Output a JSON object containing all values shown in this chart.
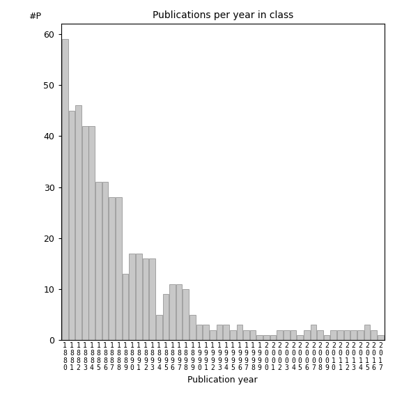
{
  "title": "Publications per year in class",
  "xlabel": "Publication year",
  "ylabel": "#P",
  "bar_color": "#c8c8c8",
  "edge_color": "#888888",
  "background_color": "#ffffff",
  "ylim": [
    0,
    62
  ],
  "yticks": [
    0,
    10,
    20,
    30,
    40,
    50,
    60
  ],
  "years": [
    1880,
    1881,
    1882,
    1883,
    1884,
    1885,
    1886,
    1887,
    1888,
    1889,
    1890,
    1891,
    1892,
    1893,
    1894,
    1895,
    1896,
    1897,
    1898,
    1899,
    1990,
    1991,
    1992,
    1993,
    1994,
    1995,
    1996,
    1997,
    1998,
    1999,
    2000,
    2001,
    2002,
    2003,
    2004,
    2005,
    2006,
    2007,
    2008,
    2009,
    2010,
    2011,
    2012,
    2013,
    2014,
    2015,
    2016,
    2017
  ],
  "values": [
    59,
    45,
    46,
    42,
    42,
    31,
    31,
    28,
    28,
    13,
    17,
    17,
    16,
    16,
    5,
    9,
    11,
    11,
    10,
    5,
    3,
    3,
    2,
    3,
    3,
    2,
    3,
    2,
    2,
    1,
    1,
    1,
    2,
    2,
    2,
    1,
    2,
    3,
    2,
    1,
    2,
    2,
    2,
    2,
    2,
    3,
    2,
    1
  ]
}
